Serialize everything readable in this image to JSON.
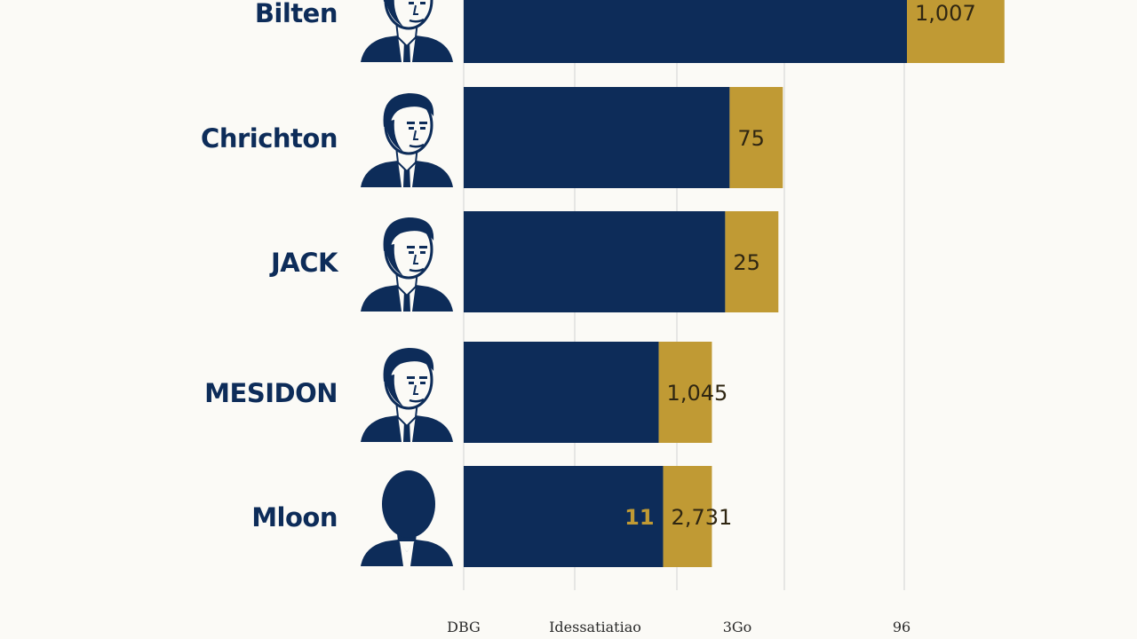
{
  "chart_data": {
    "type": "bar",
    "orientation": "horizontal",
    "categories": [
      "Bilten",
      "Chrichton",
      "JACK",
      "MESIDON",
      "Mloon"
    ],
    "series": [
      {
        "values": [
          100,
          60,
          59,
          44,
          45
        ]
      },
      {
        "values": [
          22,
          12,
          12,
          12,
          11
        ]
      }
    ],
    "stacked": true,
    "value_labels": [
      "1,007",
      "75",
      "25",
      "1,045",
      "2,731"
    ],
    "inner_labels": [
      "",
      "",
      "",
      "",
      "11"
    ],
    "x_tick_labels": [
      "DBG",
      "Idessatiatiao",
      "3Go",
      "96"
    ],
    "grid": true,
    "legend": "none"
  },
  "colors": {
    "primary": "#0d2c59",
    "secondary": "#c09a34",
    "grid": "#d9d9d9",
    "background": "#fbfaf6",
    "text": "#0d2c59",
    "value_text": "#2f2612",
    "tick_text": "#2a2a2a"
  },
  "icons": [
    "portrait-silhouette-icon",
    "portrait-silhouette-icon",
    "portrait-silhouette-icon",
    "portrait-silhouette-icon",
    "portrait-silhouette-icon"
  ]
}
